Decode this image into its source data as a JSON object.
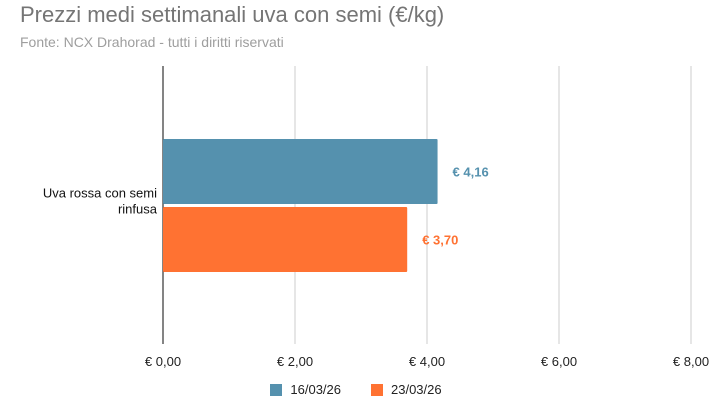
{
  "header": {
    "title": "Prezzi medi settimanali uva con semi (€/kg)",
    "subtitle": "Fonte: NCX Drahorad - tutti i diritti riservati"
  },
  "chart_data": {
    "type": "bar",
    "orientation": "horizontal",
    "title": "Prezzi medi settimanali uva con semi (€/kg)",
    "subtitle": "Fonte: NCX Drahorad - tutti i diritti riservati",
    "categories": [
      "Uva rossa con semi rinfusa"
    ],
    "series": [
      {
        "name": "16/03/26",
        "values": [
          4.16
        ],
        "color": "#5591ae",
        "label": "€ 4,16"
      },
      {
        "name": "23/03/26",
        "values": [
          3.7
        ],
        "color": "#ff7232",
        "label": "€ 3,70"
      }
    ],
    "xlim": [
      0,
      8
    ],
    "x_ticks": [
      0,
      2,
      4,
      6,
      8
    ],
    "x_tick_labels": [
      "€ 0,00",
      "€ 2,00",
      "€ 4,00",
      "€ 6,00",
      "€ 8,00"
    ],
    "grid": true,
    "legend_position": "bottom"
  }
}
